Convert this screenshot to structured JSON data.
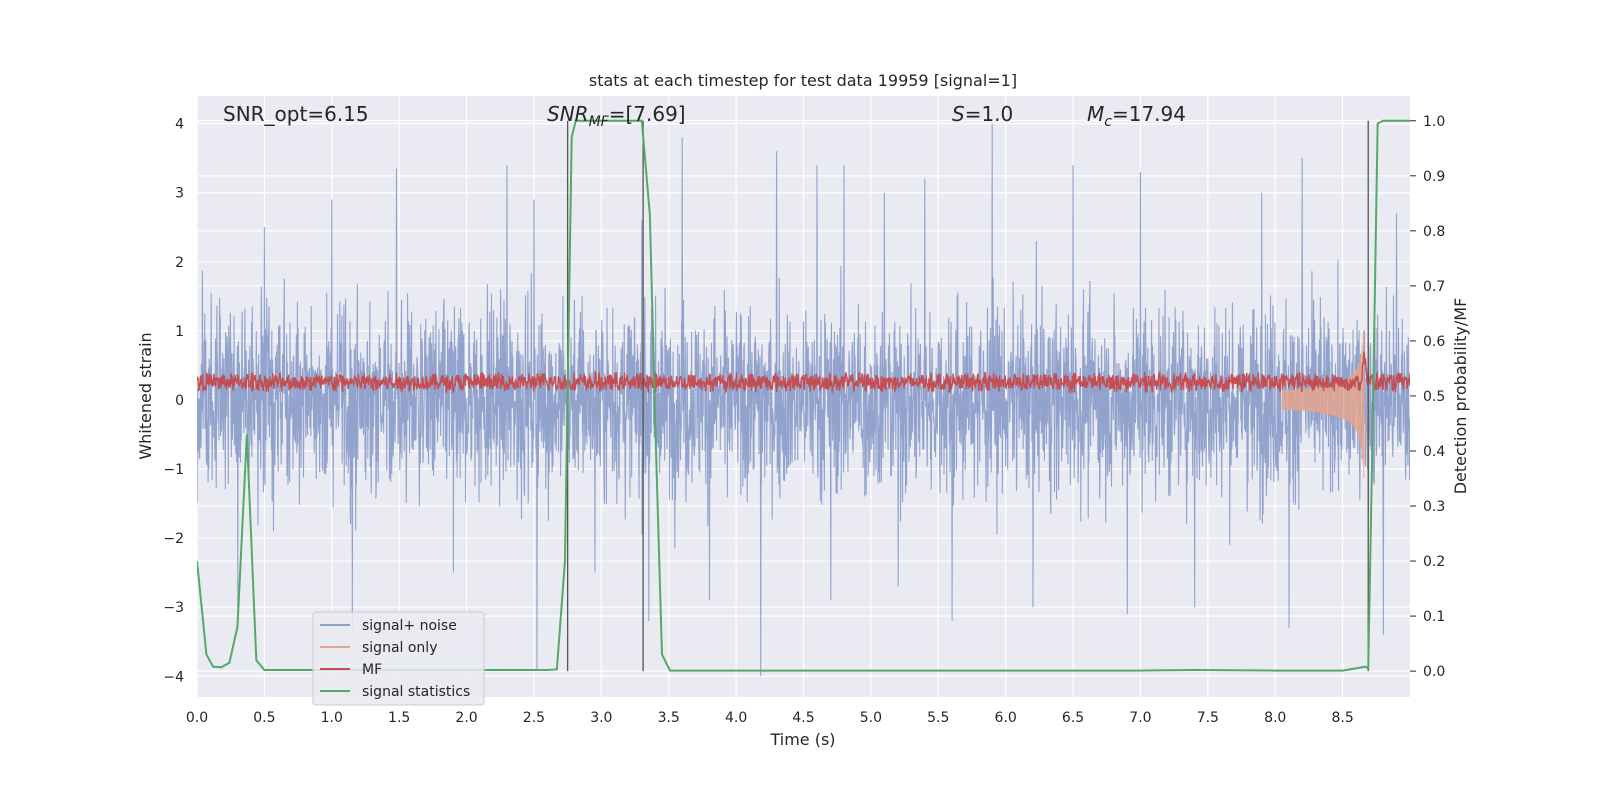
{
  "chart_data": {
    "type": "line",
    "title": "stats at each timestep for test data 19959 [signal=1]",
    "xlabel": "Time (s)",
    "ylabel": "Whitened strain",
    "y2label": "Detection probability/MF",
    "xlim": [
      0.0,
      9.0
    ],
    "ylim": [
      -4.3,
      4.4
    ],
    "y2lim": [
      -0.047,
      1.045
    ],
    "xticks": [
      "0.0",
      "0.5",
      "1.0",
      "1.5",
      "2.0",
      "2.5",
      "3.0",
      "3.5",
      "4.0",
      "4.5",
      "5.0",
      "5.5",
      "6.0",
      "6.5",
      "7.0",
      "7.5",
      "8.0",
      "8.5"
    ],
    "xtick_values": [
      0.0,
      0.5,
      1.0,
      1.5,
      2.0,
      2.5,
      3.0,
      3.5,
      4.0,
      4.5,
      5.0,
      5.5,
      6.0,
      6.5,
      7.0,
      7.5,
      8.0,
      8.5
    ],
    "yticks": [
      "4",
      "3",
      "2",
      "1",
      "0",
      "−1",
      "−2",
      "−3",
      "−4"
    ],
    "ytick_values": [
      4,
      3,
      2,
      1,
      0,
      -1,
      -2,
      -3,
      -4
    ],
    "y2ticks": [
      "1.0",
      "0.9",
      "0.8",
      "0.7",
      "0.6",
      "0.5",
      "0.4",
      "0.3",
      "0.2",
      "0.1",
      "0.0"
    ],
    "y2tick_values": [
      1.0,
      0.9,
      0.8,
      0.7,
      0.6,
      0.5,
      0.4,
      0.3,
      0.2,
      0.1,
      0.0
    ],
    "annotations": {
      "snr_opt": "SNR_opt=6.15",
      "snr_mf_main": "SNR",
      "snr_mf_sub": "MF",
      "snr_mf_value": "=[7.69]",
      "s_main": "S",
      "s_value": "=1.0",
      "mc_main": "M",
      "mc_sub": "c",
      "mc_value": "=17.94"
    },
    "vertical_lines_x": [
      2.75,
      3.31,
      8.69
    ],
    "legend": {
      "placement": "lower-left",
      "entries": [
        {
          "label": "signal+ noise",
          "color": "#8c9fca"
        },
        {
          "label": "signal only",
          "color": "#e8a48a"
        },
        {
          "label": "MF",
          "color": "#c44e52"
        },
        {
          "label": "signal statistics",
          "color": "#55a868"
        }
      ]
    },
    "series": [
      {
        "name": "signal statistics",
        "axis": "right",
        "color": "#55a868",
        "x": [
          0.0,
          0.07,
          0.12,
          0.18,
          0.24,
          0.3,
          0.37,
          0.44,
          0.5,
          1.0,
          2.0,
          2.6,
          2.67,
          2.73,
          2.78,
          2.81,
          2.84,
          2.9,
          3.0,
          3.1,
          3.2,
          3.3,
          3.36,
          3.4,
          3.45,
          3.51,
          3.6,
          4.0,
          5.0,
          6.0,
          7.0,
          7.4,
          8.0,
          8.5,
          8.67,
          8.69,
          8.72,
          8.76,
          8.8,
          8.85,
          8.88,
          8.95,
          9.0
        ],
        "y": [
          0.2,
          0.03,
          0.008,
          0.007,
          0.015,
          0.08,
          0.43,
          0.02,
          0.002,
          0.002,
          0.002,
          0.002,
          0.003,
          0.2,
          0.97,
          1.0,
          1.0,
          1.0,
          1.0,
          1.0,
          1.0,
          1.0,
          0.83,
          0.45,
          0.03,
          0.001,
          0.001,
          0.001,
          0.001,
          0.001,
          0.001,
          0.002,
          0.001,
          0.001,
          0.008,
          0.005,
          0.4,
          0.995,
          1.0,
          1.0,
          1.0,
          1.0,
          1.0
        ]
      },
      {
        "name": "signal+ noise",
        "axis": "left",
        "color": "#8c9fca",
        "description": "dense whitened strain noise, amplitude roughly within ±2.5, peaks near ±4",
        "peak_pos": [
          [
            0.5,
            2.5
          ],
          [
            1.0,
            2.9
          ],
          [
            1.48,
            3.35
          ],
          [
            2.3,
            3.4
          ],
          [
            2.5,
            2.9
          ],
          [
            3.3,
            2.6
          ],
          [
            3.6,
            3.8
          ],
          [
            4.3,
            3.6
          ],
          [
            4.6,
            3.4
          ],
          [
            4.8,
            3.4
          ],
          [
            5.1,
            3.0
          ],
          [
            5.4,
            3.2
          ],
          [
            5.9,
            4.0
          ],
          [
            6.5,
            3.4
          ],
          [
            7.0,
            3.3
          ],
          [
            7.9,
            3.0
          ],
          [
            8.2,
            3.5
          ],
          [
            8.9,
            2.7
          ]
        ],
        "peak_neg": [
          [
            0.3,
            -3.0
          ],
          [
            1.15,
            -3.3
          ],
          [
            1.9,
            -2.5
          ],
          [
            2.52,
            -3.9
          ],
          [
            2.95,
            -2.5
          ],
          [
            3.35,
            -3.2
          ],
          [
            3.8,
            -2.9
          ],
          [
            4.18,
            -4.0
          ],
          [
            4.7,
            -2.9
          ],
          [
            5.2,
            -2.7
          ],
          [
            5.6,
            -3.2
          ],
          [
            6.2,
            -3.0
          ],
          [
            6.9,
            -3.1
          ],
          [
            7.4,
            -3.0
          ],
          [
            8.1,
            -3.3
          ],
          [
            8.8,
            -3.4
          ]
        ]
      },
      {
        "name": "MF",
        "axis": "right",
        "color": "#c44e52",
        "description": "matched-filter output oscillating near 0.51-0.54 with spike near 8.65 s",
        "baseline": 0.525,
        "spike_x": 8.66,
        "spike_y": 0.58
      },
      {
        "name": "signal only",
        "axis": "left",
        "color": "#e8a48a",
        "description": "chirp signal growing in amplitude from ~8.1 s to merger near 8.65 s",
        "start_x": 8.05,
        "merger_x": 8.66,
        "max_amplitude": 1.3
      }
    ]
  }
}
